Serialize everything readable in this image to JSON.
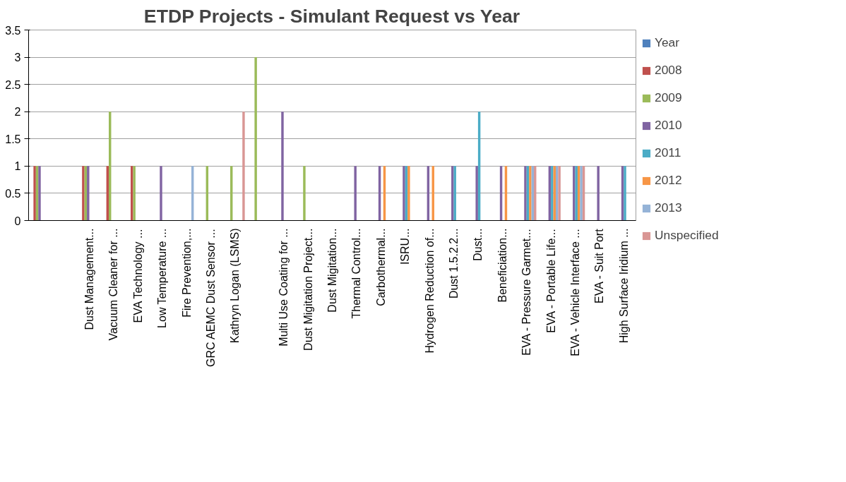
{
  "chart_data": {
    "type": "bar",
    "title": "ETDP Projects - Simulant Request vs Year",
    "categories": [
      null,
      null,
      "Dust Management...",
      "Vacuum Cleaner for ...",
      "EVA Technology ...",
      "Low Temperature ...",
      "Fire Prevention,...",
      "GRC AEMC Dust Sensor ...",
      "Kathryn Logan (LSMS)",
      null,
      "Multi Use Coating for ...",
      "Dust Migitation Project...",
      "Dust Migitation...",
      "Thermal Control...",
      "Carbothermal...",
      "ISRU...",
      "Hydrogen Reduction of...",
      "Dust 1.5.2.2...",
      "Dust...",
      "Beneficiation...",
      "EVA - Pressure Garmet...",
      "EVA - Portable Life...",
      "EVA - Vehicle Interface ...",
      "EVA - Suit Port",
      "High Surface Iridium ..."
    ],
    "series": [
      {
        "name": "Year",
        "color": "#4f81bd",
        "values": [
          null,
          null,
          null,
          null,
          null,
          null,
          null,
          null,
          null,
          null,
          null,
          null,
          null,
          null,
          null,
          null,
          null,
          null,
          null,
          null,
          null,
          null,
          null,
          null,
          null
        ]
      },
      {
        "name": "2008",
        "color": "#c0504d",
        "values": [
          1,
          null,
          1,
          1,
          1,
          null,
          null,
          null,
          null,
          null,
          null,
          null,
          null,
          null,
          null,
          null,
          null,
          null,
          null,
          null,
          null,
          null,
          null,
          null,
          null
        ]
      },
      {
        "name": "2009",
        "color": "#9bbb59",
        "values": [
          1,
          null,
          1,
          2,
          1,
          null,
          null,
          1,
          1,
          3,
          null,
          1,
          null,
          null,
          null,
          null,
          null,
          null,
          null,
          null,
          null,
          null,
          null,
          null,
          null
        ]
      },
      {
        "name": "2010",
        "color": "#8064a2",
        "values": [
          1,
          null,
          1,
          null,
          null,
          1,
          null,
          null,
          null,
          null,
          2,
          null,
          null,
          1,
          1,
          1,
          1,
          1,
          1,
          1,
          1,
          1,
          1,
          1,
          1
        ]
      },
      {
        "name": "2011",
        "color": "#4bacc6",
        "values": [
          null,
          null,
          null,
          null,
          null,
          null,
          null,
          null,
          null,
          null,
          null,
          null,
          null,
          null,
          null,
          1,
          null,
          1,
          2,
          null,
          1,
          1,
          1,
          null,
          1
        ]
      },
      {
        "name": "2012",
        "color": "#f79646",
        "values": [
          null,
          null,
          null,
          null,
          null,
          null,
          null,
          null,
          null,
          null,
          null,
          null,
          null,
          null,
          1,
          1,
          1,
          null,
          null,
          1,
          1,
          1,
          1,
          null,
          null
        ]
      },
      {
        "name": "2013",
        "color": "#95b3d7",
        "values": [
          null,
          null,
          null,
          null,
          null,
          null,
          1,
          null,
          null,
          null,
          null,
          null,
          null,
          null,
          null,
          null,
          null,
          null,
          null,
          null,
          1,
          1,
          1,
          null,
          null
        ]
      },
      {
        "name": "Unspecified",
        "color": "#d99694",
        "values": [
          null,
          null,
          null,
          null,
          null,
          null,
          null,
          null,
          2,
          null,
          null,
          null,
          null,
          null,
          null,
          null,
          null,
          null,
          null,
          null,
          1,
          1,
          1,
          null,
          null
        ]
      }
    ],
    "ylim": [
      0,
      3.5
    ],
    "yticks": [
      0,
      0.5,
      1,
      1.5,
      2,
      2.5,
      3,
      3.5
    ],
    "grid": "y",
    "legend": "right"
  }
}
